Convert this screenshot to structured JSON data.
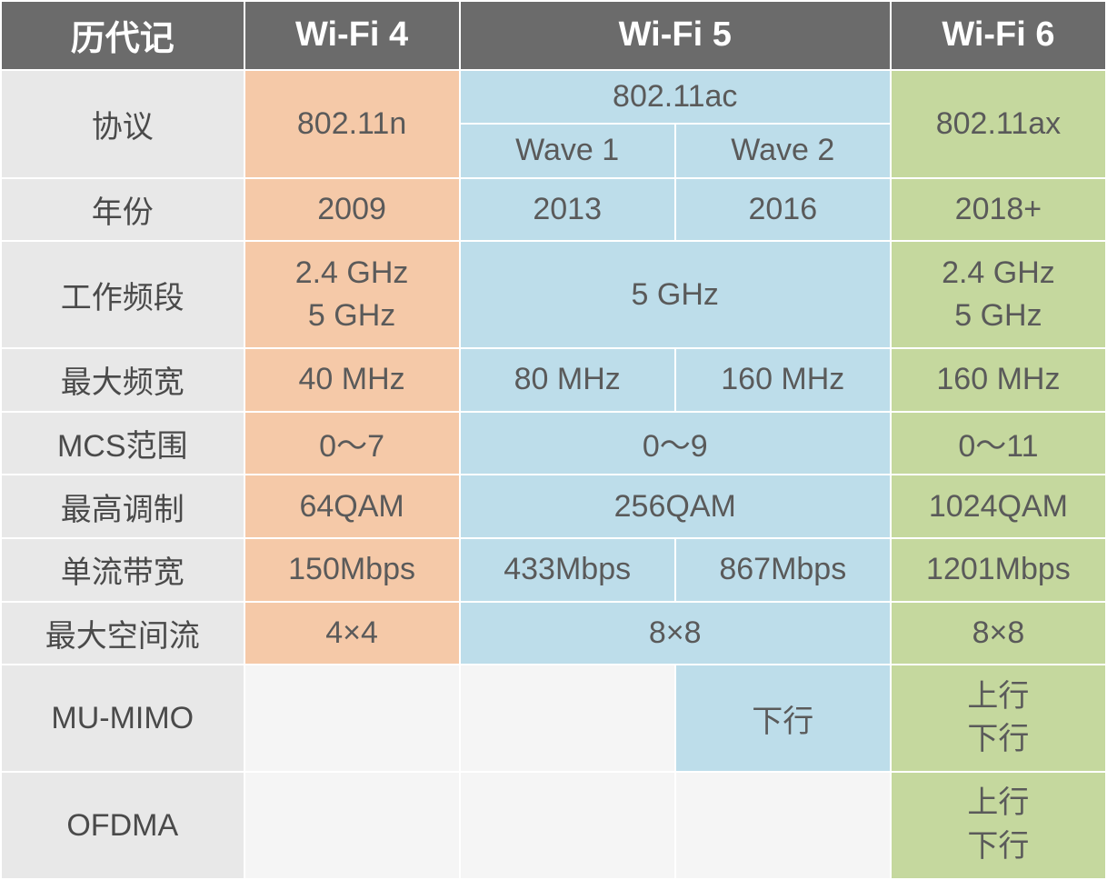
{
  "colors": {
    "header_bg": "#6b6b6b",
    "header_text": "#ffffff",
    "rowlabel_bg": "#e8e8e8",
    "rowlabel_text": "#4a4a4a",
    "wifi4_bg": "#f5c9a8",
    "wifi4_text": "#5a5a5a",
    "wifi5_bg": "#bdddea",
    "wifi5_text": "#5a5a5a",
    "wifi6_bg": "#c5d89e",
    "wifi6_text": "#5a5a5a",
    "empty_bg": "#f5f5f5"
  },
  "fonts": {
    "header_size": "38px",
    "rowlabel_size": "34px",
    "cell_size": "34px",
    "header_weight": "bold"
  },
  "header": {
    "generation": "历代记",
    "wifi4": "Wi-Fi 4",
    "wifi5": "Wi-Fi 5",
    "wifi6": "Wi-Fi 6"
  },
  "rows": {
    "protocol": {
      "label": "协议",
      "wifi4": "802.11n",
      "wifi5_top": "802.11ac",
      "wifi5_wave1": "Wave 1",
      "wifi5_wave2": "Wave 2",
      "wifi6": "802.11ax"
    },
    "year": {
      "label": "年份",
      "wifi4": "2009",
      "wifi5_a": "2013",
      "wifi5_b": "2016",
      "wifi6": "2018+"
    },
    "band": {
      "label": "工作频段",
      "wifi4_l1": "2.4 GHz",
      "wifi4_l2": "5 GHz",
      "wifi5": "5 GHz",
      "wifi6_l1": "2.4 GHz",
      "wifi6_l2": "5 GHz"
    },
    "bandwidth": {
      "label": "最大频宽",
      "wifi4": "40 MHz",
      "wifi5_a": "80 MHz",
      "wifi5_b": "160 MHz",
      "wifi6": "160 MHz"
    },
    "mcs": {
      "label": "MCS范围",
      "wifi4": "0～7",
      "wifi5": "0～9",
      "wifi6": "0～11"
    },
    "modulation": {
      "label": "最高调制",
      "wifi4": "64QAM",
      "wifi5": "256QAM",
      "wifi6": "1024QAM"
    },
    "single_stream": {
      "label": "单流带宽",
      "wifi4": "150Mbps",
      "wifi5_a": "433Mbps",
      "wifi5_b": "867Mbps",
      "wifi6": "1201Mbps"
    },
    "spatial_streams": {
      "label": "最大空间流",
      "wifi4": "4×4",
      "wifi5": "8×8",
      "wifi6": "8×8"
    },
    "mumimo": {
      "label": "MU-MIMO",
      "wifi5_b": "下行",
      "wifi6_l1": "上行",
      "wifi6_l2": "下行"
    },
    "ofdma": {
      "label": "OFDMA",
      "wifi6_l1": "上行",
      "wifi6_l2": "下行"
    }
  },
  "layout": {
    "col_widths": [
      "22%",
      "19.5%",
      "19.5%",
      "19.5%",
      "19.5%"
    ]
  }
}
